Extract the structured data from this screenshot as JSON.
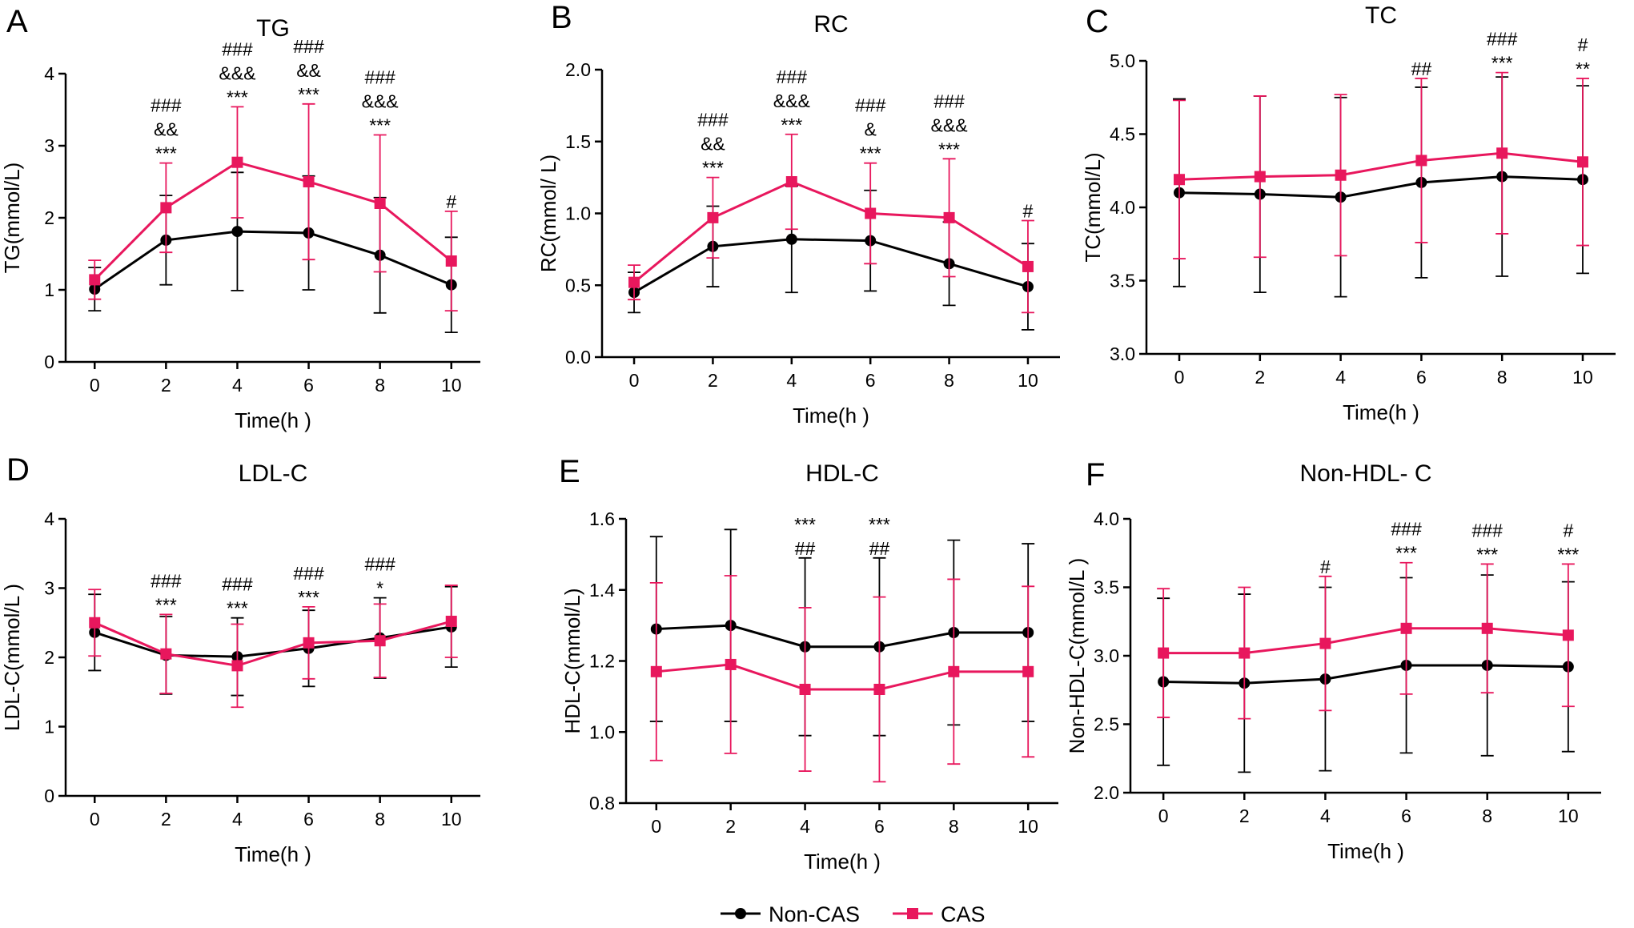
{
  "figure": {
    "legend": {
      "placement": "bottom-center",
      "entries": [
        {
          "name": "Non-CAS",
          "marker": "circle",
          "color": "#000000"
        },
        {
          "name": "CAS",
          "marker": "square",
          "color": "#E8175D"
        }
      ]
    }
  },
  "chart_data": [
    {
      "panel": "A",
      "title": "TG",
      "type": "line",
      "xlabel": "Time(h )",
      "ylabel": "TG(mmol/L)",
      "x": [
        0,
        2,
        4,
        6,
        8,
        10
      ],
      "xticks": [
        "0",
        "2",
        "4",
        "6",
        "8",
        "10"
      ],
      "ylim": [
        0,
        4
      ],
      "yticks": [
        "0",
        "1",
        "2",
        "3",
        "4"
      ],
      "series": [
        {
          "name": "Non-CAS",
          "values": [
            1.01,
            1.69,
            1.81,
            1.79,
            1.48,
            1.07
          ],
          "err": [
            0.3,
            0.62,
            0.82,
            0.79,
            0.8,
            0.66
          ]
        },
        {
          "name": "CAS",
          "values": [
            1.14,
            2.14,
            2.77,
            2.5,
            2.2,
            1.4
          ],
          "err": [
            0.27,
            0.62,
            0.77,
            1.08,
            0.95,
            0.69
          ]
        }
      ],
      "annotations": [
        {
          "x": 2,
          "lines": [
            "###",
            "&&",
            "***"
          ]
        },
        {
          "x": 4,
          "lines": [
            "###",
            "&&&",
            "***"
          ]
        },
        {
          "x": 6,
          "lines": [
            "###",
            "&&",
            "***"
          ]
        },
        {
          "x": 8,
          "lines": [
            "###",
            "&&&",
            "***"
          ]
        },
        {
          "x": 10,
          "lines": [
            "#"
          ]
        }
      ]
    },
    {
      "panel": "B",
      "title": "RC",
      "type": "line",
      "xlabel": "Time(h )",
      "ylabel": "RC(mmol/ L)",
      "x": [
        0,
        2,
        4,
        6,
        8,
        10
      ],
      "xticks": [
        "0",
        "2",
        "4",
        "6",
        "8",
        "10"
      ],
      "ylim": [
        0,
        2
      ],
      "yticks": [
        "0.0",
        "0.5",
        "1.0",
        "1.5",
        "2.0"
      ],
      "series": [
        {
          "name": "Non-CAS",
          "values": [
            0.45,
            0.77,
            0.82,
            0.81,
            0.65,
            0.49
          ],
          "err": [
            0.14,
            0.28,
            0.37,
            0.35,
            0.29,
            0.3
          ]
        },
        {
          "name": "CAS",
          "values": [
            0.52,
            0.97,
            1.22,
            1.0,
            0.97,
            0.63
          ],
          "err": [
            0.12,
            0.28,
            0.33,
            0.35,
            0.41,
            0.32
          ]
        }
      ],
      "annotations": [
        {
          "x": 2,
          "lines": [
            "###",
            "&&",
            "***"
          ]
        },
        {
          "x": 4,
          "lines": [
            "###",
            "&&&",
            "***"
          ]
        },
        {
          "x": 6,
          "lines": [
            "###",
            "&",
            "***"
          ]
        },
        {
          "x": 8,
          "lines": [
            "###",
            "&&&",
            "***"
          ]
        },
        {
          "x": 10,
          "lines": [
            "#"
          ]
        }
      ]
    },
    {
      "panel": "C",
      "title": "TC",
      "type": "line",
      "xlabel": "Time(h )",
      "ylabel": "TC(mmol/L)",
      "x": [
        0,
        2,
        4,
        6,
        8,
        10
      ],
      "xticks": [
        "0",
        "2",
        "4",
        "6",
        "8",
        "10"
      ],
      "ylim": [
        3,
        5
      ],
      "yticks": [
        "3.0",
        "3.5",
        "4.0",
        "4.5",
        "5.0"
      ],
      "series": [
        {
          "name": "Non-CAS",
          "values": [
            4.1,
            4.09,
            4.07,
            4.17,
            4.21,
            4.19
          ],
          "err": [
            0.64,
            0.67,
            0.68,
            0.65,
            0.68,
            0.64
          ]
        },
        {
          "name": "CAS",
          "values": [
            4.19,
            4.21,
            4.22,
            4.32,
            4.37,
            4.31
          ],
          "err": [
            0.54,
            0.55,
            0.55,
            0.56,
            0.55,
            0.57
          ]
        }
      ],
      "annotations": [
        {
          "x": 6,
          "lines": [
            "##"
          ]
        },
        {
          "x": 8,
          "lines": [
            "###",
            "***"
          ]
        },
        {
          "x": 10,
          "lines": [
            "#",
            "**"
          ]
        }
      ]
    },
    {
      "panel": "D",
      "title": "LDL-C",
      "type": "line",
      "xlabel": "Time(h )",
      "ylabel": "LDL-C(mmol/L )",
      "x": [
        0,
        2,
        4,
        6,
        8,
        10
      ],
      "xticks": [
        "0",
        "2",
        "4",
        "6",
        "8",
        "10"
      ],
      "ylim": [
        0,
        4
      ],
      "yticks": [
        "0",
        "1",
        "2",
        "3",
        "4"
      ],
      "series": [
        {
          "name": "Non-CAS",
          "values": [
            2.36,
            2.03,
            2.01,
            2.13,
            2.28,
            2.44
          ],
          "err": [
            0.55,
            0.56,
            0.56,
            0.55,
            0.58,
            0.58
          ]
        },
        {
          "name": "CAS",
          "values": [
            2.5,
            2.05,
            1.88,
            2.21,
            2.24,
            2.52
          ],
          "err": [
            0.48,
            0.57,
            0.6,
            0.52,
            0.53,
            0.52
          ]
        }
      ],
      "annotations": [
        {
          "x": 2,
          "lines": [
            "###",
            "***"
          ]
        },
        {
          "x": 4,
          "lines": [
            "###",
            "***"
          ]
        },
        {
          "x": 6,
          "lines": [
            "###",
            "***"
          ]
        },
        {
          "x": 8,
          "lines": [
            "###",
            "*"
          ]
        }
      ]
    },
    {
      "panel": "E",
      "title": "HDL-C",
      "type": "line",
      "xlabel": "Time(h )",
      "ylabel": "HDL-C(mmol/L)",
      "x": [
        0,
        2,
        4,
        6,
        8,
        10
      ],
      "xticks": [
        "0",
        "2",
        "4",
        "6",
        "8",
        "10"
      ],
      "ylim": [
        0.8,
        1.6
      ],
      "yticks": [
        "0.8",
        "1.0",
        "1.2",
        "1.4",
        "1.6"
      ],
      "series": [
        {
          "name": "Non-CAS",
          "values": [
            1.29,
            1.3,
            1.24,
            1.24,
            1.28,
            1.28
          ],
          "err": [
            0.26,
            0.27,
            0.25,
            0.25,
            0.26,
            0.25
          ]
        },
        {
          "name": "CAS",
          "values": [
            1.17,
            1.19,
            1.12,
            1.12,
            1.17,
            1.17
          ],
          "err": [
            0.25,
            0.25,
            0.23,
            0.26,
            0.26,
            0.24
          ]
        }
      ],
      "annotations": [
        {
          "x": 4,
          "lines": [
            "***",
            "##"
          ]
        },
        {
          "x": 6,
          "lines": [
            "***",
            "##"
          ]
        }
      ]
    },
    {
      "panel": "F",
      "title": "Non-HDL- C",
      "type": "line",
      "xlabel": "Time(h )",
      "ylabel": "Non-HDL-C(mmol/L )",
      "x": [
        0,
        2,
        4,
        6,
        8,
        10
      ],
      "xticks": [
        "0",
        "2",
        "4",
        "6",
        "8",
        "10"
      ],
      "ylim": [
        2,
        4
      ],
      "yticks": [
        "2.0",
        "2.5",
        "3.0",
        "3.5",
        "4.0"
      ],
      "series": [
        {
          "name": "Non-CAS",
          "values": [
            2.81,
            2.8,
            2.83,
            2.93,
            2.93,
            2.92
          ],
          "err": [
            0.61,
            0.65,
            0.67,
            0.64,
            0.66,
            0.62
          ]
        },
        {
          "name": "CAS",
          "values": [
            3.02,
            3.02,
            3.09,
            3.2,
            3.2,
            3.15
          ],
          "err": [
            0.47,
            0.48,
            0.49,
            0.48,
            0.47,
            0.52
          ]
        }
      ],
      "annotations": [
        {
          "x": 4,
          "lines": [
            "#"
          ]
        },
        {
          "x": 6,
          "lines": [
            "###",
            "***"
          ]
        },
        {
          "x": 8,
          "lines": [
            "###",
            "***"
          ]
        },
        {
          "x": 10,
          "lines": [
            "#",
            "***"
          ]
        }
      ]
    }
  ]
}
